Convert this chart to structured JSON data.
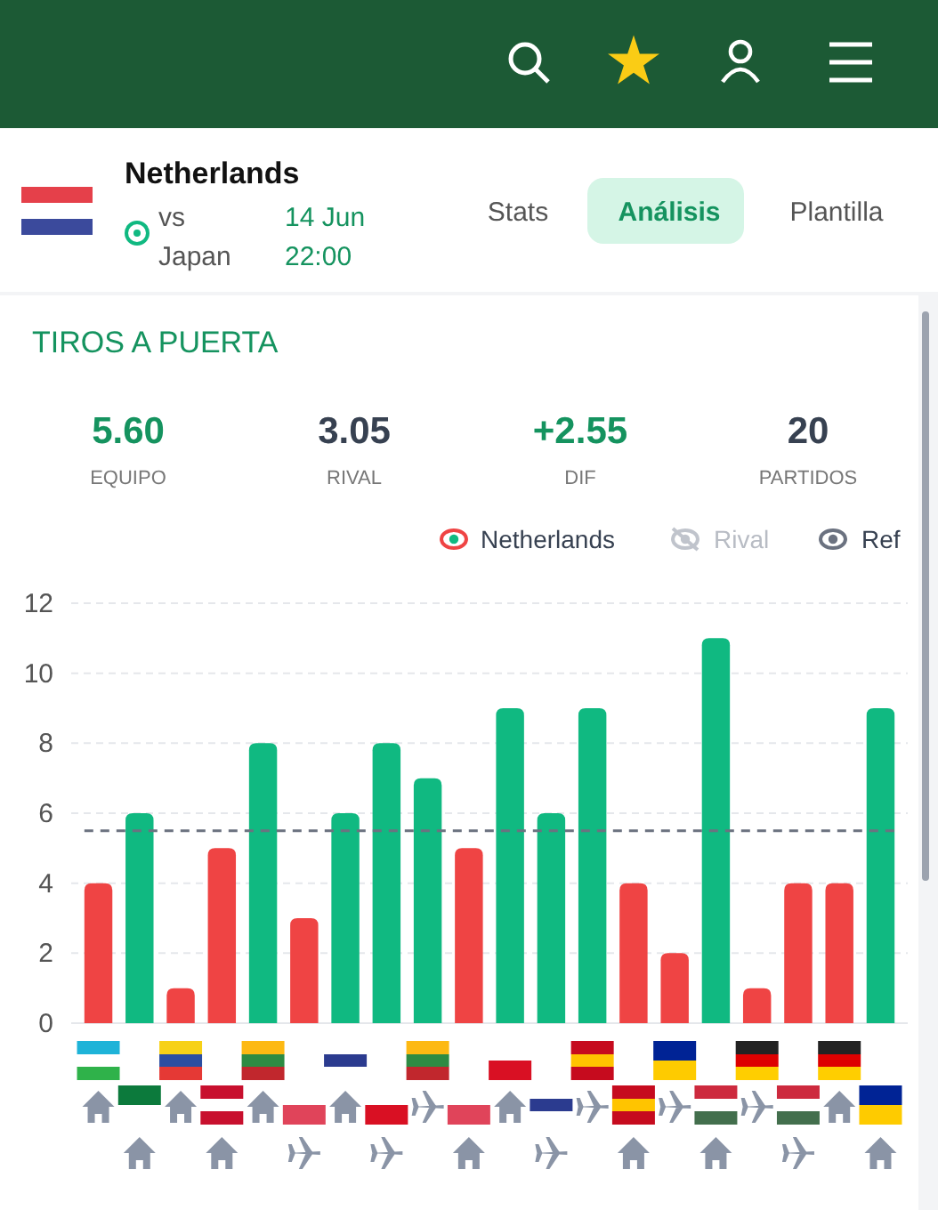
{
  "chart_data": {
    "type": "bar",
    "title": "TIROS A PUERTA",
    "categories": [
      null,
      null,
      null,
      null,
      null,
      null,
      null,
      null,
      null,
      null,
      null,
      null,
      null,
      null,
      null,
      null,
      null,
      null,
      null,
      null
    ],
    "series": [
      {
        "name": "Netherlands",
        "values": [
          4,
          6,
          1,
          5,
          8,
          3,
          6,
          8,
          7,
          5,
          9,
          6,
          9,
          4,
          2,
          11,
          1,
          4,
          4,
          9
        ],
        "colors": [
          "#ef4444",
          "#10b981",
          "#ef4444",
          "#ef4444",
          "#10b981",
          "#ef4444",
          "#10b981",
          "#10b981",
          "#10b981",
          "#ef4444",
          "#10b981",
          "#10b981",
          "#10b981",
          "#ef4444",
          "#ef4444",
          "#10b981",
          "#ef4444",
          "#ef4444",
          "#ef4444",
          "#10b981"
        ]
      }
    ],
    "ylim": [
      0,
      12
    ],
    "yticks": [
      0,
      2,
      4,
      6,
      8,
      10,
      12
    ],
    "grid": "y",
    "legend": "top right",
    "ref_lines": [
      {
        "axis": "y",
        "value": 5.5,
        "label": "Ref",
        "color": "#6b7280",
        "line_style": "dashed"
      }
    ],
    "annotations": [
      "Netherlands",
      "vs",
      "Japan",
      "14 Jun",
      "22:00",
      "Stats",
      "Análisis",
      "Plantilla",
      "5.60",
      "EQUIPO",
      "3.05",
      "RIVAL",
      "+2.55",
      "DIF",
      "20",
      "PARTIDOS",
      "Rival"
    ]
  }
}
